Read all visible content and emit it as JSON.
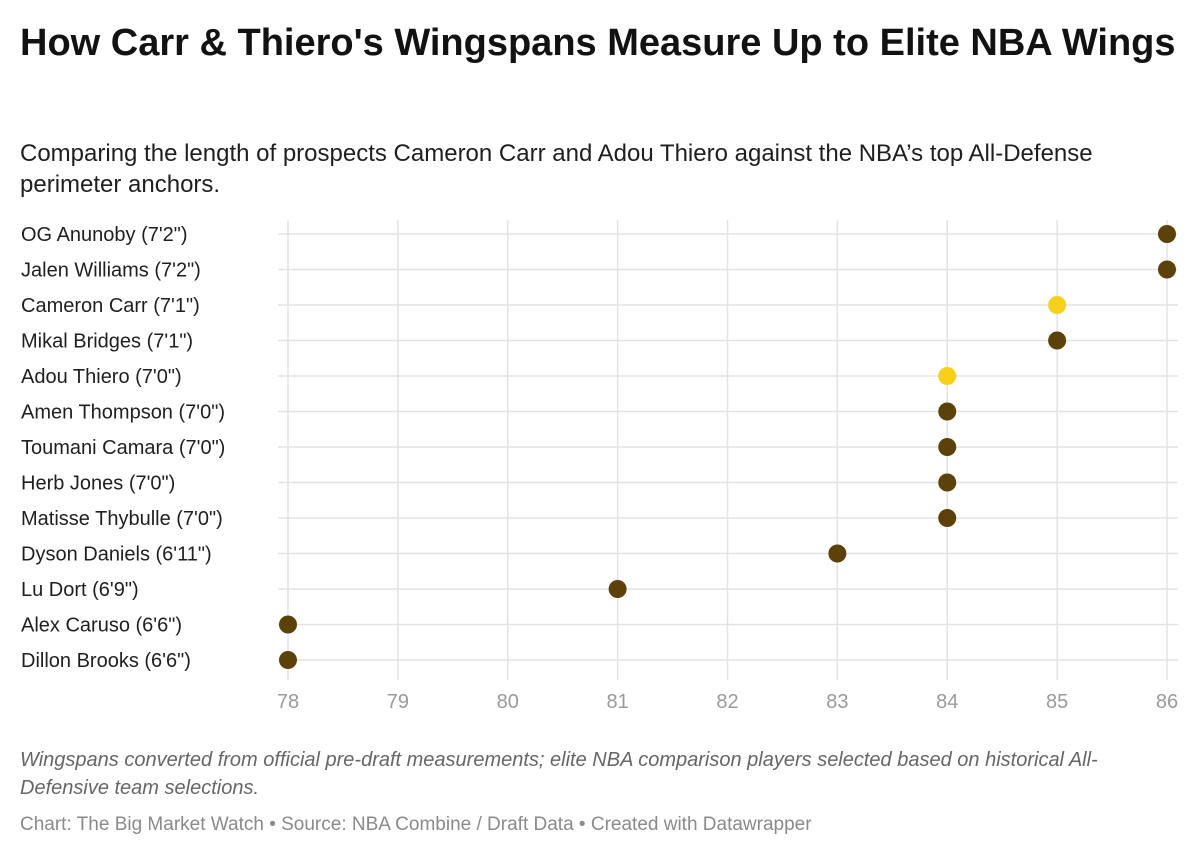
{
  "header": {
    "title": "How Carr & Thiero's Wingspans Measure Up to Elite NBA Wings",
    "subtitle": "Comparing the length of prospects Cameron Carr and Adou Thiero against the NBA’s top All-Defense perimeter anchors."
  },
  "footer": {
    "notes": "Wingspans converted from official pre-draft measurements; elite NBA comparison players selected based on historical All-Defensive team selections.",
    "byline": "Chart: The Big Market Watch • Source: NBA Combine / Draft Data • Created with Datawrapper"
  },
  "colors": {
    "prospect": "#f7d117",
    "nba": "#5c4109",
    "grid": "#e3e3e3",
    "tick_label": "#9a9a9a"
  },
  "chart_data": {
    "type": "scatter",
    "x_ticks": [
      78,
      79,
      80,
      81,
      82,
      83,
      84,
      85,
      86
    ],
    "xlim": [
      78,
      86
    ],
    "grid": true,
    "categories": [
      "OG Anunoby (7'2\")",
      "Jalen Williams (7'2\")",
      "Cameron Carr (7'1\")",
      "Mikal Bridges (7'1\")",
      "Adou Thiero (7'0\")",
      "Amen Thompson (7'0\")",
      "Toumani Camara (7'0\")",
      "Herb Jones (7'0\")",
      "Matisse Thybulle (7'0\")",
      "Dyson Daniels (6'11\")",
      "Lu Dort (6'9\")",
      "Alex Caruso (6'6\")",
      "Dillon Brooks (6'6\")"
    ],
    "values": [
      86,
      86,
      85,
      85,
      84,
      84,
      84,
      84,
      84,
      83,
      81,
      78,
      78
    ],
    "highlight": [
      false,
      false,
      true,
      false,
      true,
      false,
      false,
      false,
      false,
      false,
      false,
      false,
      false
    ]
  }
}
